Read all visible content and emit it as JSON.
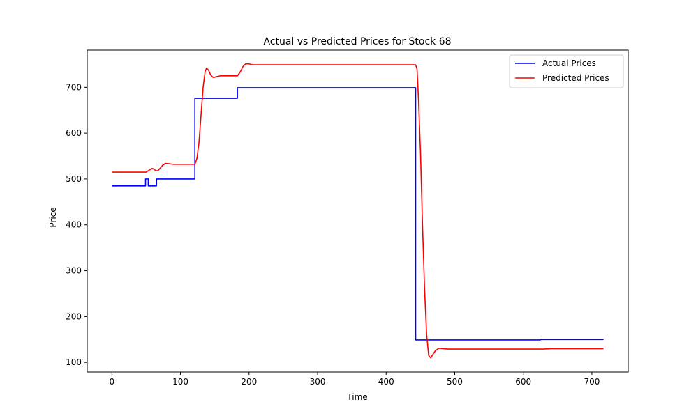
{
  "chart_data": {
    "type": "line",
    "title": "Actual vs Predicted Prices for Stock 68",
    "xlabel": "Time",
    "ylabel": "Price",
    "xlim": [
      -36,
      753
    ],
    "ylim": [
      79,
      781
    ],
    "xticks": [
      0,
      100,
      200,
      300,
      400,
      500,
      600,
      700
    ],
    "yticks": [
      100,
      200,
      300,
      400,
      500,
      600,
      700
    ],
    "grid": false,
    "legend_position": "top-right",
    "series": [
      {
        "name": "Actual Prices",
        "color": "#0000ff",
        "points": [
          [
            0,
            485
          ],
          [
            49,
            485
          ],
          [
            49,
            500
          ],
          [
            53,
            500
          ],
          [
            53,
            485
          ],
          [
            65,
            485
          ],
          [
            65,
            500
          ],
          [
            121,
            500
          ],
          [
            121,
            676
          ],
          [
            183,
            676
          ],
          [
            183,
            699
          ],
          [
            443,
            699
          ],
          [
            443,
            149
          ],
          [
            625,
            149
          ],
          [
            625,
            150
          ],
          [
            717,
            150
          ]
        ]
      },
      {
        "name": "Predicted Prices",
        "color": "#ff0000",
        "points": [
          [
            0,
            515
          ],
          [
            50,
            515
          ],
          [
            54,
            519
          ],
          [
            58,
            523
          ],
          [
            61,
            522
          ],
          [
            64,
            518
          ],
          [
            67,
            518
          ],
          [
            70,
            523
          ],
          [
            74,
            530
          ],
          [
            78,
            534
          ],
          [
            84,
            533
          ],
          [
            90,
            532
          ],
          [
            121,
            532
          ],
          [
            124,
            545
          ],
          [
            127,
            580
          ],
          [
            130,
            640
          ],
          [
            133,
            700
          ],
          [
            136,
            735
          ],
          [
            138,
            742
          ],
          [
            141,
            737
          ],
          [
            144,
            727
          ],
          [
            148,
            721
          ],
          [
            152,
            723
          ],
          [
            158,
            725
          ],
          [
            170,
            725
          ],
          [
            183,
            725
          ],
          [
            187,
            733
          ],
          [
            191,
            745
          ],
          [
            195,
            751
          ],
          [
            200,
            751
          ],
          [
            205,
            749
          ],
          [
            215,
            749
          ],
          [
            300,
            749
          ],
          [
            400,
            749
          ],
          [
            443,
            749
          ],
          [
            445,
            740
          ],
          [
            447,
            680
          ],
          [
            450,
            560
          ],
          [
            453,
            400
          ],
          [
            456,
            260
          ],
          [
            459,
            160
          ],
          [
            462,
            115
          ],
          [
            465,
            110
          ],
          [
            468,
            117
          ],
          [
            472,
            126
          ],
          [
            477,
            131
          ],
          [
            483,
            130
          ],
          [
            490,
            129
          ],
          [
            550,
            129
          ],
          [
            600,
            129
          ],
          [
            630,
            129
          ],
          [
            640,
            130
          ],
          [
            717,
            130
          ]
        ]
      }
    ]
  }
}
